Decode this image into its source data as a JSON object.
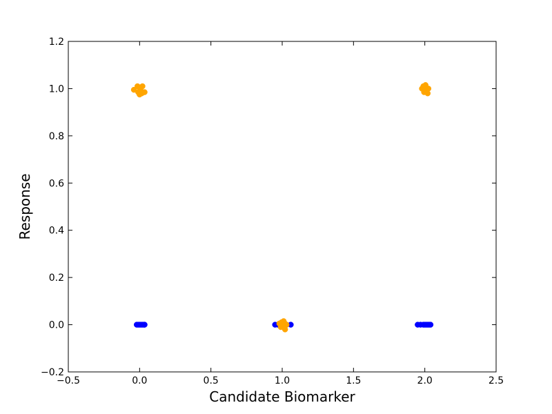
{
  "chart_data": {
    "type": "scatter",
    "title": "",
    "xlabel": "Candidate Biomarker",
    "ylabel": "Response",
    "xlim": [
      -0.5,
      2.5
    ],
    "ylim": [
      -0.2,
      1.2
    ],
    "xticks": [
      -0.5,
      0.0,
      0.5,
      1.0,
      1.5,
      2.0,
      2.5
    ],
    "xtick_labels": [
      "−0.5",
      "0.0",
      "0.5",
      "1.0",
      "1.5",
      "2.0",
      "2.5"
    ],
    "yticks": [
      -0.2,
      0.0,
      0.2,
      0.4,
      0.6,
      0.8,
      1.0,
      1.2
    ],
    "ytick_labels": [
      "−0.2",
      "0.0",
      "0.2",
      "0.4",
      "0.6",
      "0.8",
      "1.0",
      "1.2"
    ],
    "grid": false,
    "legend": "none",
    "series": [
      {
        "color": "#0000ff",
        "points": [
          [
            -0.02,
            0.0
          ],
          [
            -0.01,
            0.0
          ],
          [
            0.0,
            0.0
          ],
          [
            0.01,
            0.0
          ],
          [
            0.02,
            0.0
          ],
          [
            0.03,
            0.0
          ],
          [
            0.035,
            0.0
          ],
          [
            0.95,
            0.0
          ],
          [
            0.97,
            0.0
          ],
          [
            1.0,
            0.0
          ],
          [
            1.03,
            0.0
          ],
          [
            1.06,
            0.0
          ],
          [
            1.95,
            0.0
          ],
          [
            1.97,
            0.0
          ],
          [
            1.99,
            0.0
          ],
          [
            2.0,
            0.0
          ],
          [
            2.01,
            0.0
          ],
          [
            2.02,
            0.0
          ],
          [
            2.03,
            0.0
          ],
          [
            2.04,
            0.0
          ]
        ]
      },
      {
        "color": "#ffa500",
        "points": [
          [
            -0.04,
            0.995
          ],
          [
            -0.015,
            1.01
          ],
          [
            -0.01,
            0.985
          ],
          [
            0.0,
            0.975
          ],
          [
            0.005,
            1.0
          ],
          [
            0.01,
            0.99
          ],
          [
            0.02,
            1.01
          ],
          [
            0.015,
            0.98
          ],
          [
            0.035,
            0.985
          ],
          [
            0.0,
            1.005
          ],
          [
            0.98,
            0.005
          ],
          [
            0.99,
            -0.01
          ],
          [
            1.0,
            0.0
          ],
          [
            1.01,
            0.015
          ],
          [
            1.02,
            -0.02
          ],
          [
            1.03,
            0.0
          ],
          [
            0.995,
            0.01
          ],
          [
            1.005,
            -0.005
          ],
          [
            1.015,
            0.008
          ],
          [
            1.98,
            1.0
          ],
          [
            1.99,
            1.01
          ],
          [
            2.0,
            0.99
          ],
          [
            2.01,
            1.005
          ],
          [
            2.02,
            0.98
          ],
          [
            2.025,
            1.0
          ],
          [
            1.995,
            0.985
          ],
          [
            2.005,
            1.015
          ],
          [
            2.015,
            0.995
          ],
          [
            2.0,
            1.0
          ]
        ]
      }
    ]
  }
}
